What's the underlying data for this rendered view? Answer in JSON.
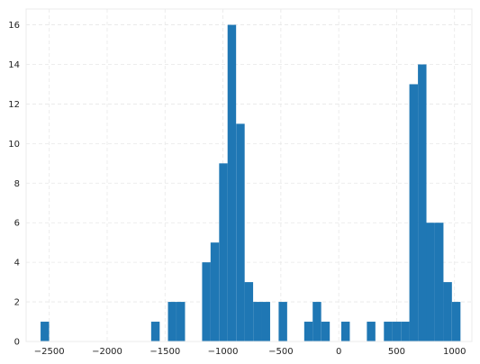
{
  "chart_data": {
    "type": "bar",
    "subtype": "histogram",
    "color": "#1f77b4",
    "grid": true,
    "bin_width": 73.5,
    "bins": [
      {
        "x": -2575,
        "count": 1
      },
      {
        "x": -1620,
        "count": 1
      },
      {
        "x": -1475,
        "count": 2
      },
      {
        "x": -1401,
        "count": 2
      },
      {
        "x": -1180,
        "count": 4
      },
      {
        "x": -1107,
        "count": 5
      },
      {
        "x": -1033,
        "count": 9
      },
      {
        "x": -960,
        "count": 16
      },
      {
        "x": -886,
        "count": 11
      },
      {
        "x": -813,
        "count": 3
      },
      {
        "x": -739,
        "count": 2
      },
      {
        "x": -666,
        "count": 2
      },
      {
        "x": -519,
        "count": 2
      },
      {
        "x": -298,
        "count": 1
      },
      {
        "x": -225,
        "count": 2
      },
      {
        "x": -151,
        "count": 1
      },
      {
        "x": 22,
        "count": 1
      },
      {
        "x": 243,
        "count": 1
      },
      {
        "x": 390,
        "count": 1
      },
      {
        "x": 463,
        "count": 1
      },
      {
        "x": 537,
        "count": 1
      },
      {
        "x": 610,
        "count": 13
      },
      {
        "x": 684,
        "count": 14
      },
      {
        "x": 757,
        "count": 6
      },
      {
        "x": 831,
        "count": 6
      },
      {
        "x": 904,
        "count": 3
      },
      {
        "x": 978,
        "count": 2
      }
    ],
    "xlim": [
      -2700,
      1150
    ],
    "ylim": [
      0,
      16.8
    ],
    "x_ticks": [
      -2500,
      -2000,
      -1500,
      -1000,
      -500,
      0,
      500,
      1000
    ],
    "x_tick_labels": [
      "−2500",
      "−2000",
      "−1500",
      "−1000",
      "−500",
      "0",
      "500",
      "1000"
    ],
    "y_ticks": [
      0,
      2,
      4,
      6,
      8,
      10,
      12,
      14,
      16
    ],
    "y_tick_labels": [
      "0",
      "2",
      "4",
      "6",
      "8",
      "10",
      "12",
      "14",
      "16"
    ],
    "title": "",
    "xlabel": "",
    "ylabel": ""
  }
}
